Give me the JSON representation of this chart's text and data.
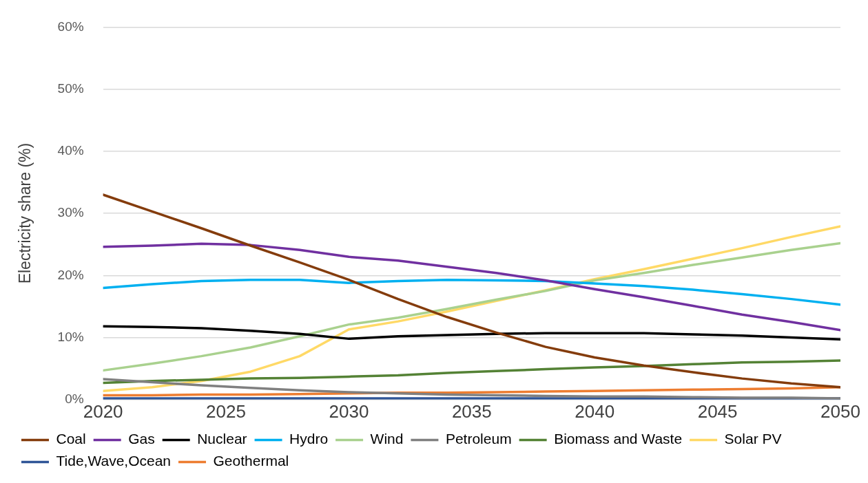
{
  "chart_data": {
    "type": "line",
    "ylabel": "Electricity share (%)",
    "x": [
      2020,
      2022,
      2024,
      2026,
      2028,
      2030,
      2032,
      2034,
      2036,
      2038,
      2040,
      2042,
      2044,
      2046,
      2048,
      2050
    ],
    "xlim": [
      2020,
      2050
    ],
    "xticks": [
      2020,
      2025,
      2030,
      2035,
      2040,
      2045,
      2050
    ],
    "ylim": [
      0,
      60
    ],
    "yticks": [
      {
        "value": 0,
        "label": "0%"
      },
      {
        "value": 10,
        "label": "10%"
      },
      {
        "value": 20,
        "label": "20%"
      },
      {
        "value": 30,
        "label": "30%"
      },
      {
        "value": 40,
        "label": "40%"
      },
      {
        "value": 50,
        "label": "50%"
      },
      {
        "value": 60,
        "label": "60%"
      }
    ],
    "grid": "y",
    "legend": "bottom",
    "marker": "none",
    "line_style": "solid",
    "series": [
      {
        "name": "Coal",
        "color": "#843c0c",
        "values": [
          33,
          30.3,
          27.6,
          24.8,
          22.1,
          19.3,
          16.2,
          13.3,
          10.8,
          8.5,
          6.8,
          5.5,
          4.4,
          3.4,
          2.6,
          2.0
        ]
      },
      {
        "name": "Gas",
        "color": "#7030a0",
        "values": [
          24.6,
          24.8,
          25.1,
          24.9,
          24.1,
          23.0,
          22.4,
          21.4,
          20.4,
          19.2,
          17.8,
          16.5,
          15.1,
          13.7,
          12.5,
          11.2
        ]
      },
      {
        "name": "Nuclear",
        "color": "#000000",
        "values": [
          11.8,
          11.7,
          11.5,
          11.1,
          10.6,
          9.8,
          10.2,
          10.4,
          10.6,
          10.7,
          10.7,
          10.7,
          10.5,
          10.3,
          10.0,
          9.7
        ]
      },
      {
        "name": "Hydro",
        "color": "#00b0f0",
        "values": [
          18.0,
          18.6,
          19.1,
          19.3,
          19.3,
          18.8,
          19.1,
          19.3,
          19.2,
          19.1,
          18.7,
          18.3,
          17.7,
          17.0,
          16.2,
          15.3
        ]
      },
      {
        "name": "Wind",
        "color": "#a9d18e",
        "values": [
          4.7,
          5.8,
          7.0,
          8.4,
          10.2,
          12.1,
          13.2,
          14.6,
          16.1,
          17.5,
          19.2,
          20.4,
          21.7,
          22.9,
          24.1,
          25.2
        ]
      },
      {
        "name": "Petroleum",
        "color": "#808080",
        "values": [
          3.3,
          2.8,
          2.3,
          1.9,
          1.5,
          1.2,
          1.0,
          0.8,
          0.7,
          0.6,
          0.5,
          0.5,
          0.4,
          0.3,
          0.3,
          0.2
        ]
      },
      {
        "name": "Biomass and Waste",
        "color": "#548235",
        "values": [
          2.7,
          3.0,
          3.2,
          3.4,
          3.5,
          3.7,
          3.9,
          4.3,
          4.6,
          4.9,
          5.2,
          5.4,
          5.7,
          6.0,
          6.1,
          6.3
        ]
      },
      {
        "name": "Solar PV",
        "color": "#ffd966",
        "values": [
          1.4,
          2.0,
          3.0,
          4.5,
          7.0,
          11.3,
          12.6,
          14.2,
          15.9,
          17.6,
          19.4,
          21.0,
          22.7,
          24.4,
          26.2,
          27.9
        ]
      },
      {
        "name": "Tide,Wave,Ocean",
        "color": "#2f5597",
        "values": [
          0.2,
          0.2,
          0.2,
          0.2,
          0.2,
          0.2,
          0.2,
          0.2,
          0.2,
          0.2,
          0.2,
          0.2,
          0.2,
          0.2,
          0.2,
          0.2
        ]
      },
      {
        "name": "Geothermal",
        "color": "#ed7d31",
        "values": [
          0.7,
          0.7,
          0.8,
          0.8,
          0.9,
          1.0,
          1.1,
          1.1,
          1.2,
          1.3,
          1.4,
          1.5,
          1.6,
          1.7,
          1.8,
          2.0
        ]
      }
    ]
  }
}
